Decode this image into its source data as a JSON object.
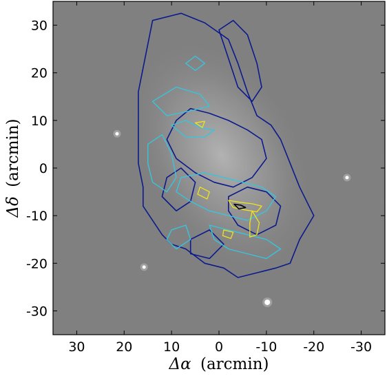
{
  "chart_data": {
    "type": "contour",
    "background": "grayscale residual image with point sources",
    "x_axis": {
      "label_symbol": "Δα",
      "label_unit": "(arcmin)",
      "range": [
        35,
        -35
      ],
      "inverted": true,
      "ticks": [
        30,
        20,
        10,
        0,
        -10,
        -20,
        -30
      ],
      "tick_labels": [
        "30",
        "20",
        "10",
        "0",
        "-10",
        "-20",
        "-30"
      ]
    },
    "y_axis": {
      "label_symbol": "Δδ",
      "label_unit": "(arcmin)",
      "range": [
        -35,
        35
      ],
      "ticks": [
        30,
        20,
        10,
        0,
        -10,
        -20,
        -30
      ],
      "tick_labels": [
        "30",
        "20",
        "10",
        "0",
        "-10",
        "-20",
        "-30"
      ]
    },
    "grid": false,
    "legend": "none",
    "contour_levels": [
      {
        "level": 1,
        "color": "#0b1a8c",
        "paths": [
          [
            [
              14,
              31
            ],
            [
              8,
              32.5
            ],
            [
              3,
              30.5
            ],
            [
              -2,
              27
            ],
            [
              -4,
              22
            ],
            [
              -6,
              16
            ],
            [
              -8,
              11
            ],
            [
              -11,
              9
            ],
            [
              -13,
              6
            ],
            [
              -15,
              1
            ],
            [
              -17,
              -4
            ],
            [
              -19,
              -8
            ],
            [
              -20,
              -10
            ],
            [
              -17,
              -15
            ],
            [
              -15,
              -20
            ],
            [
              -12,
              -21
            ],
            [
              -8,
              -22
            ],
            [
              -4,
              -23
            ],
            [
              -1,
              -21
            ],
            [
              3,
              -20
            ],
            [
              7,
              -17
            ],
            [
              10,
              -16
            ],
            [
              12,
              -14
            ],
            [
              14,
              -11
            ],
            [
              16,
              -8
            ],
            [
              16,
              -4
            ],
            [
              17,
              1
            ],
            [
              17,
              6
            ],
            [
              17,
              10
            ],
            [
              17,
              16
            ],
            [
              16,
              21
            ],
            [
              15,
              26
            ],
            [
              14,
              31
            ]
          ],
          [
            [
              0,
              29
            ],
            [
              -3,
              31
            ],
            [
              -6,
              28
            ],
            [
              -8,
              22
            ],
            [
              -9,
              17
            ],
            [
              -7,
              14
            ],
            [
              -4,
              17
            ],
            [
              -2,
              23
            ],
            [
              0,
              29
            ]
          ],
          [
            [
              9,
              10
            ],
            [
              6,
              12.5
            ],
            [
              2,
              11.5
            ],
            [
              -2,
              10
            ],
            [
              -6,
              8
            ],
            [
              -9,
              6
            ],
            [
              -10,
              2
            ],
            [
              -7,
              -2
            ],
            [
              -3,
              -4
            ],
            [
              1,
              -3
            ],
            [
              5,
              -1
            ],
            [
              9,
              2
            ],
            [
              11,
              6
            ],
            [
              9,
              10
            ]
          ],
          [
            [
              11,
              -2
            ],
            [
              8,
              0
            ],
            [
              5,
              -3
            ],
            [
              6,
              -7
            ],
            [
              9,
              -9
            ],
            [
              12,
              -6
            ],
            [
              11,
              -2
            ]
          ],
          [
            [
              -2,
              -6
            ],
            [
              -6,
              -4
            ],
            [
              -10,
              -5
            ],
            [
              -13,
              -8
            ],
            [
              -12,
              -12
            ],
            [
              -8,
              -14
            ],
            [
              -4,
              -12
            ],
            [
              -2,
              -9
            ],
            [
              -2,
              -6
            ]
          ],
          [
            [
              6,
              -15
            ],
            [
              2,
              -13
            ],
            [
              -1,
              -16
            ],
            [
              2,
              -19
            ],
            [
              6,
              -18
            ],
            [
              6,
              -15
            ]
          ]
        ]
      },
      {
        "level": 2,
        "color": "#39c4dc",
        "paths": [
          [
            [
              7,
              22
            ],
            [
              5,
              23.5
            ],
            [
              3,
              22
            ],
            [
              5,
              20.5
            ],
            [
              7,
              22
            ]
          ],
          [
            [
              14,
              14
            ],
            [
              9,
              17
            ],
            [
              4,
              15.5
            ],
            [
              2,
              13
            ],
            [
              6,
              12
            ],
            [
              11,
              11
            ],
            [
              14,
              14
            ]
          ],
          [
            [
              10,
              9
            ],
            [
              7,
              10
            ],
            [
              4,
              8.5
            ],
            [
              1,
              8
            ],
            [
              3,
              6.5
            ],
            [
              7,
              6.5
            ],
            [
              10,
              9
            ]
          ],
          [
            [
              15,
              5
            ],
            [
              12,
              7
            ],
            [
              10,
              3
            ],
            [
              9,
              -2
            ],
            [
              11,
              -5
            ],
            [
              14,
              -3
            ],
            [
              15,
              1
            ],
            [
              15,
              5
            ]
          ],
          [
            [
              8,
              -2
            ],
            [
              3,
              -1
            ],
            [
              -1,
              -2
            ],
            [
              -5,
              -3
            ],
            [
              -9,
              -4
            ],
            [
              -12,
              -6
            ],
            [
              -10,
              -9
            ],
            [
              -6,
              -11
            ],
            [
              -2,
              -10
            ],
            [
              2,
              -9
            ],
            [
              6,
              -7
            ],
            [
              9,
              -5
            ],
            [
              8,
              -2
            ]
          ],
          [
            [
              2,
              -12
            ],
            [
              -2,
              -13
            ],
            [
              -6,
              -14
            ],
            [
              -10,
              -15
            ],
            [
              -13,
              -17
            ],
            [
              -10,
              -19
            ],
            [
              -6,
              -18
            ],
            [
              -2,
              -17
            ],
            [
              1,
              -15
            ],
            [
              2,
              -12
            ]
          ],
          [
            [
              10,
              -13
            ],
            [
              7,
              -12
            ],
            [
              6,
              -15
            ],
            [
              9,
              -17
            ],
            [
              11,
              -15
            ],
            [
              10,
              -13
            ]
          ]
        ]
      },
      {
        "level": 3,
        "color": "#f2e21a",
        "paths": [
          [
            [
              5,
              9.5
            ],
            [
              3,
              9.8
            ],
            [
              3.5,
              8.5
            ],
            [
              5,
              9.5
            ]
          ],
          [
            [
              4,
              -4
            ],
            [
              2,
              -5
            ],
            [
              2.5,
              -6.5
            ],
            [
              4.5,
              -5.5
            ],
            [
              4,
              -4
            ]
          ],
          [
            [
              -2,
              -6.8
            ],
            [
              -4.5,
              -7.2
            ],
            [
              -7,
              -7.5
            ],
            [
              -9,
              -8
            ],
            [
              -8,
              -9.2
            ],
            [
              -5.5,
              -8.8
            ],
            [
              -3,
              -8.3
            ],
            [
              -2,
              -6.8
            ]
          ],
          [
            [
              -7,
              -9
            ],
            [
              -8.5,
              -11.5
            ],
            [
              -8,
              -14
            ],
            [
              -6.5,
              -14.5
            ],
            [
              -6.5,
              -11.5
            ],
            [
              -7,
              -9
            ]
          ],
          [
            [
              -1,
              -13
            ],
            [
              -3,
              -13.5
            ],
            [
              -2.5,
              -14.8
            ],
            [
              -0.8,
              -14.2
            ],
            [
              -1,
              -13
            ]
          ]
        ]
      },
      {
        "level": 4,
        "color": "#000000",
        "paths": [
          [
            [
              -3.2,
              -7.6
            ],
            [
              -4.6,
              -7.8
            ],
            [
              -5.6,
              -8.3
            ],
            [
              -4.2,
              -8.6
            ],
            [
              -3.2,
              -7.6
            ]
          ]
        ]
      }
    ],
    "point_sources": [
      {
        "x": -10.2,
        "y": -28.2,
        "kind": "bright star"
      },
      {
        "x": 21.5,
        "y": 7.2,
        "kind": "star"
      },
      {
        "x": -27.0,
        "y": -2.0,
        "kind": "star"
      },
      {
        "x": 15.8,
        "y": -20.8,
        "kind": "star"
      }
    ]
  }
}
